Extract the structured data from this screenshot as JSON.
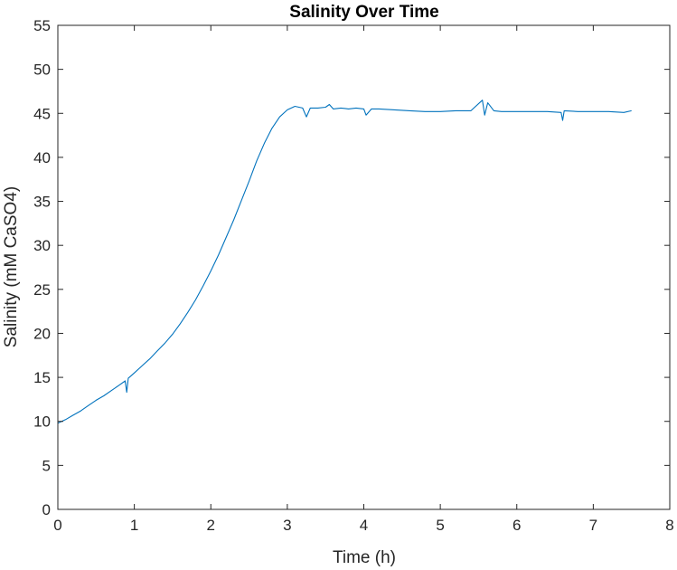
{
  "chart_data": {
    "type": "line",
    "title": "Salinity Over Time",
    "xlabel": "Time (h)",
    "ylabel": "Salinity (mM CaSO4)",
    "xlim": [
      0,
      8
    ],
    "ylim": [
      0,
      55
    ],
    "xticks": [
      "0",
      "1",
      "2",
      "3",
      "4",
      "5",
      "6",
      "7",
      "8"
    ],
    "yticks": [
      "0",
      "5",
      "10",
      "15",
      "20",
      "25",
      "30",
      "35",
      "40",
      "45",
      "50",
      "55"
    ],
    "grid": false,
    "legend": "none",
    "colors": {
      "line": "#0072BD",
      "axes": "#262626"
    },
    "series": [
      {
        "x": [
          0,
          0.1,
          0.2,
          0.3,
          0.4,
          0.5,
          0.6,
          0.7,
          0.8,
          0.88,
          0.9,
          0.92,
          1.0,
          1.1,
          1.2,
          1.3,
          1.4,
          1.5,
          1.6,
          1.7,
          1.8,
          1.9,
          2.0,
          2.1,
          2.2,
          2.3,
          2.4,
          2.5,
          2.6,
          2.7,
          2.8,
          2.9,
          3.0,
          3.1,
          3.2,
          3.25,
          3.3,
          3.4,
          3.5,
          3.55,
          3.6,
          3.7,
          3.8,
          3.9,
          4.0,
          4.03,
          4.1,
          4.2,
          4.4,
          4.6,
          4.8,
          5.0,
          5.2,
          5.4,
          5.55,
          5.58,
          5.62,
          5.7,
          5.8,
          6.0,
          6.2,
          6.4,
          6.58,
          6.6,
          6.62,
          6.8,
          7.0,
          7.2,
          7.4,
          7.5
        ],
        "y": [
          9.8,
          10.2,
          10.7,
          11.2,
          11.8,
          12.4,
          12.9,
          13.5,
          14.1,
          14.6,
          13.3,
          14.9,
          15.5,
          16.3,
          17.1,
          18.0,
          18.9,
          19.9,
          21.1,
          22.4,
          23.8,
          25.4,
          27.1,
          28.9,
          30.9,
          32.9,
          35.1,
          37.3,
          39.6,
          41.6,
          43.3,
          44.6,
          45.4,
          45.8,
          45.6,
          44.6,
          45.6,
          45.6,
          45.7,
          46.0,
          45.5,
          45.6,
          45.5,
          45.6,
          45.5,
          44.8,
          45.5,
          45.5,
          45.4,
          45.3,
          45.2,
          45.2,
          45.3,
          45.3,
          46.5,
          44.8,
          46.2,
          45.3,
          45.2,
          45.2,
          45.2,
          45.2,
          45.1,
          44.2,
          45.3,
          45.2,
          45.2,
          45.2,
          45.1,
          45.3
        ]
      }
    ]
  }
}
